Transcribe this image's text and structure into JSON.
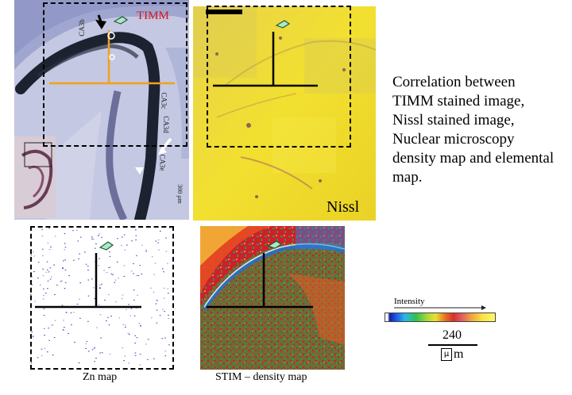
{
  "timm_panel": {
    "title": "TIMM",
    "title_color": "#e0121a",
    "region_labels": [
      "CA3b",
      "CA3c",
      "CA3d",
      "CA3e"
    ],
    "scale_text": "300 μm",
    "crosshair_color": "#f0a21c"
  },
  "nissl_panel": {
    "label": "Nissl"
  },
  "description": "Correlation between TIMM stained image, Nissl stained image, Nuclear microscopy density map and elemental map.",
  "zn_panel": {
    "caption": "Zn map"
  },
  "stim_panel": {
    "caption": "STIM – density map"
  },
  "legend": {
    "title": "Intensity",
    "scale_value": "240",
    "scale_unit": "m",
    "unit_glyph": "μ"
  }
}
